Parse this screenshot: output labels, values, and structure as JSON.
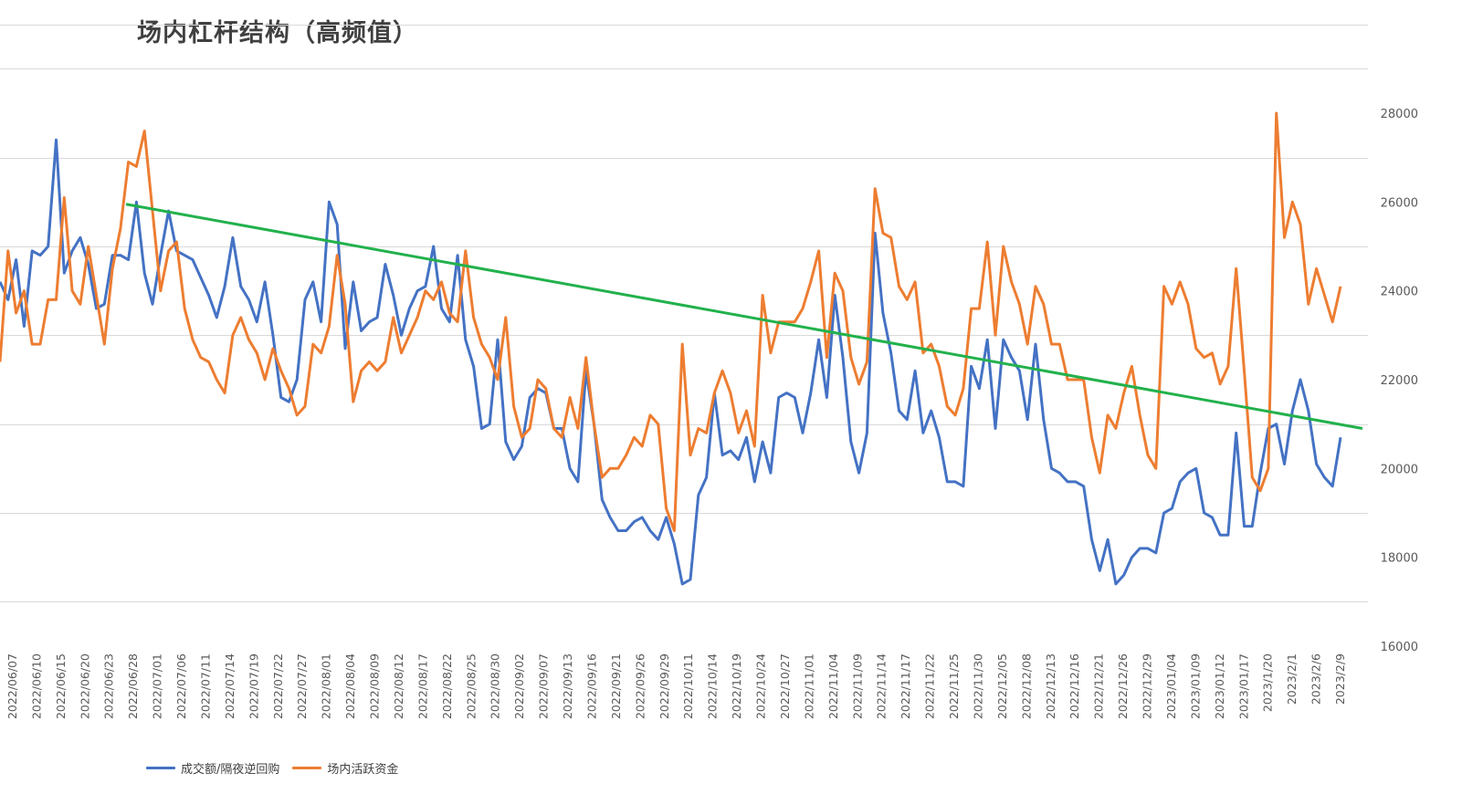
{
  "chart_data": {
    "type": "line",
    "title": "场内杠杆结构（高频值）",
    "y_axis": {
      "side": "right",
      "min": 16000,
      "max": 28000,
      "ticks": [
        16000,
        18000,
        20000,
        22000,
        24000,
        26000,
        28000
      ]
    },
    "x_tick_labels": [
      "2022/06/07",
      "2022/06/10",
      "2022/06/15",
      "2022/06/20",
      "2022/06/23",
      "2022/06/28",
      "2022/07/01",
      "2022/07/06",
      "2022/07/11",
      "2022/07/14",
      "2022/07/19",
      "2022/07/22",
      "2022/07/27",
      "2022/08/01",
      "2022/08/04",
      "2022/08/09",
      "2022/08/12",
      "2022/08/17",
      "2022/08/22",
      "2022/08/25",
      "2022/08/30",
      "2022/09/02",
      "2022/09/07",
      "2022/09/13",
      "2022/09/16",
      "2022/09/21",
      "2022/09/26",
      "2022/09/29",
      "2022/10/11",
      "2022/10/14",
      "2022/10/19",
      "2022/10/24",
      "2022/10/27",
      "2022/11/01",
      "2022/11/04",
      "2022/11/09",
      "2022/11/14",
      "2022/11/17",
      "2022/11/22",
      "2022/11/25",
      "2022/11/30",
      "2022/12/05",
      "2022/12/08",
      "2022/12/13",
      "2022/12/16",
      "2022/12/21",
      "2022/12/26",
      "2022/12/29",
      "2023/01/04",
      "2023/01/09",
      "2023/01/12",
      "2023/01/17",
      "2023/1/20",
      "2023/2/1",
      "2023/2/6",
      "2023/2/9"
    ],
    "series": [
      {
        "name": "成交额/隔夜逆回购",
        "color": "#4472C4",
        "values": [
          24200,
          23800,
          24700,
          23200,
          24900,
          24800,
          25000,
          27400,
          24400,
          24900,
          25200,
          24600,
          23600,
          23700,
          24800,
          24800,
          24700,
          26000,
          24400,
          23700,
          24800,
          25800,
          24900,
          24800,
          24700,
          24300,
          23900,
          23400,
          24100,
          25200,
          24100,
          23800,
          23300,
          24200,
          23000,
          21600,
          21500,
          22000,
          23800,
          24200,
          23300,
          26000,
          25500,
          22700,
          24200,
          23100,
          23300,
          23400,
          24600,
          23900,
          23000,
          23600,
          24000,
          24100,
          25000,
          23600,
          23300,
          24800,
          22900,
          22300,
          20900,
          21000,
          22900,
          20600,
          20200,
          20500,
          21600,
          21800,
          21700,
          20900,
          20900,
          20000,
          19700,
          22200,
          21000,
          19300,
          18900,
          18600,
          18600,
          18800,
          18900,
          18600,
          18400,
          18900,
          18300,
          17400,
          17500,
          19400,
          19800,
          21700,
          20300,
          20400,
          20200,
          20700,
          19700,
          20600,
          19900,
          21600,
          21700,
          21600,
          20800,
          21700,
          22900,
          21600,
          23900,
          22500,
          20600,
          19900,
          20800,
          25300,
          23500,
          22600,
          21300,
          21100,
          22200,
          20800,
          21300,
          20700,
          19700,
          19700,
          19600,
          22300,
          21800,
          22900,
          20900,
          22900,
          22500,
          22200,
          21100,
          22800,
          21100,
          20000,
          19900,
          19700,
          19700,
          19600,
          18400,
          17700,
          18400,
          17400,
          17600,
          18000,
          18200,
          18200,
          18100,
          19000,
          19100,
          19700,
          19900,
          20000,
          19000,
          18900,
          18500,
          18500,
          20800,
          18700,
          18700,
          19900,
          20900,
          21000,
          20100,
          21300,
          22000,
          21300,
          20100,
          19800,
          19600,
          20700
        ]
      },
      {
        "name": "场内活跃资金",
        "color": "#ED7D31",
        "values": [
          22400,
          24900,
          23500,
          24000,
          22800,
          22800,
          23800,
          23800,
          26100,
          24000,
          23700,
          25000,
          23900,
          22800,
          24500,
          25400,
          26900,
          26800,
          27600,
          25800,
          24000,
          24900,
          25100,
          23600,
          22900,
          22500,
          22400,
          22000,
          21700,
          23000,
          23400,
          22900,
          22600,
          22000,
          22700,
          22200,
          21800,
          21200,
          21400,
          22800,
          22600,
          23200,
          24800,
          23700,
          21500,
          22200,
          22400,
          22200,
          22400,
          23400,
          22600,
          23000,
          23400,
          24000,
          23800,
          24200,
          23500,
          23300,
          24900,
          23400,
          22800,
          22500,
          22000,
          23400,
          21400,
          20700,
          20900,
          22000,
          21800,
          20900,
          20700,
          21600,
          20900,
          22500,
          21000,
          19800,
          20000,
          20000,
          20300,
          20700,
          20500,
          21200,
          21000,
          19100,
          18600,
          22800,
          20300,
          20900,
          20800,
          21700,
          22200,
          21700,
          20800,
          21300,
          20500,
          23900,
          22600,
          23300,
          23300,
          23300,
          23600,
          24200,
          24900,
          22500,
          24400,
          24000,
          22500,
          21900,
          22400,
          26300,
          25300,
          25200,
          24100,
          23800,
          24200,
          22600,
          22800,
          22300,
          21400,
          21200,
          21800,
          23600,
          23600,
          25100,
          23000,
          25000,
          24200,
          23700,
          22800,
          24100,
          23700,
          22800,
          22800,
          22000,
          22000,
          22000,
          20700,
          19900,
          21200,
          20900,
          21700,
          22300,
          21200,
          20300,
          20000,
          24100,
          23700,
          24200,
          23700,
          22700,
          22500,
          22600,
          21900,
          22300,
          24500,
          22200,
          19800,
          19500,
          20000,
          28000,
          25200,
          26000,
          25500,
          23700,
          24500,
          23900,
          23300,
          24100
        ]
      }
    ],
    "trendline": {
      "color": "#22B14C",
      "start_value": 25950,
      "end_value": 20900
    },
    "grid": true,
    "legend_position": "bottom-left"
  }
}
